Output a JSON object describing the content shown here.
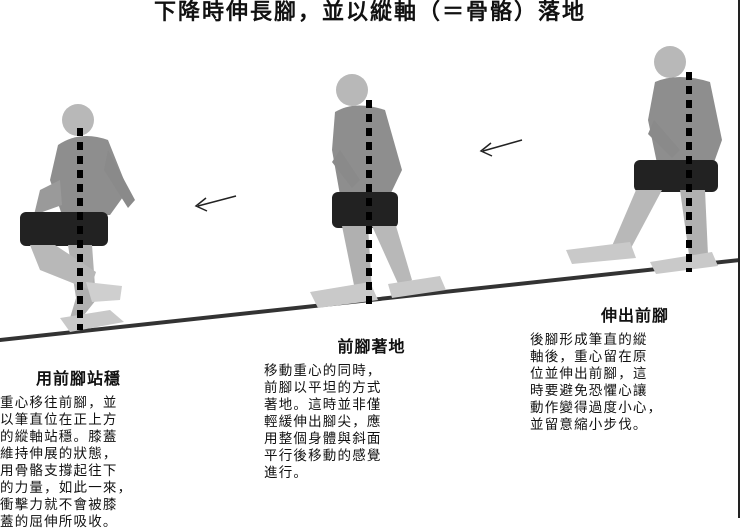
{
  "title": "下降時伸長腳，並以縱軸（＝骨骼）落地",
  "captions": [
    {
      "heading": "用前腳站穩",
      "body": "重心移往前腳，並\n以筆直位在正上方\n的縱軸站穩。膝蓋\n維持伸展的狀態，\n用骨骼支撐起往下\n的力量，如此一來，\n衝擊力就不會被膝\n蓋的屈伸所吸收。"
    },
    {
      "heading": "前腳著地",
      "body": "移動重心的同時，\n前腳以平坦的方式\n著地。這時並非僅\n輕緩伸出腳尖，應\n用整個身體與斜面\n平行後移動的感覺\n進行。"
    },
    {
      "heading": "伸出前腳",
      "body": "後腳形成筆直的縱\n軸後，重心留在原\n位並伸出前腳，這\n時要避免恐懼心讓\n動作變得過度小心，\n並留意縮小步伐。"
    }
  ],
  "colors": {
    "shirt": "#8e8e8e",
    "shorts": "#222222",
    "skin": "#b8b8b8",
    "shoes": "#c9c9c9",
    "slope": "#333333",
    "axis_dash": "#000000"
  },
  "icons": [
    "runner-figure",
    "arrow-left-icon",
    "vertical-axis-line"
  ]
}
